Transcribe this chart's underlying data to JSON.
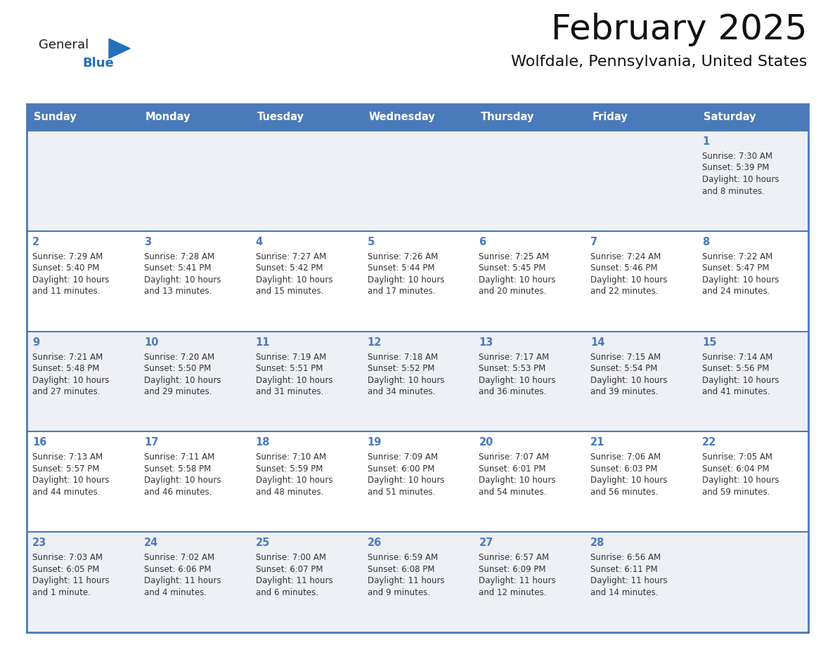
{
  "title": "February 2025",
  "subtitle": "Wolfdale, Pennsylvania, United States",
  "days_of_week": [
    "Sunday",
    "Monday",
    "Tuesday",
    "Wednesday",
    "Thursday",
    "Friday",
    "Saturday"
  ],
  "header_bg": "#4a7aba",
  "header_text": "#FFFFFF",
  "cell_bg_odd": "#eef0f5",
  "cell_bg_even": "#FFFFFF",
  "border_color": "#4a7aba",
  "title_color": "#111111",
  "subtitle_color": "#111111",
  "day_number_color": "#4a7aba",
  "cell_text_color": "#333333",
  "logo_general_color": "#1a1a1a",
  "logo_blue_color": "#2272bb",
  "weeks": [
    [
      {
        "day": null,
        "sunrise": null,
        "sunset": null,
        "daylight": null
      },
      {
        "day": null,
        "sunrise": null,
        "sunset": null,
        "daylight": null
      },
      {
        "day": null,
        "sunrise": null,
        "sunset": null,
        "daylight": null
      },
      {
        "day": null,
        "sunrise": null,
        "sunset": null,
        "daylight": null
      },
      {
        "day": null,
        "sunrise": null,
        "sunset": null,
        "daylight": null
      },
      {
        "day": null,
        "sunrise": null,
        "sunset": null,
        "daylight": null
      },
      {
        "day": 1,
        "sunrise": "7:30 AM",
        "sunset": "5:39 PM",
        "daylight": "10 hours\nand 8 minutes."
      }
    ],
    [
      {
        "day": 2,
        "sunrise": "7:29 AM",
        "sunset": "5:40 PM",
        "daylight": "10 hours\nand 11 minutes."
      },
      {
        "day": 3,
        "sunrise": "7:28 AM",
        "sunset": "5:41 PM",
        "daylight": "10 hours\nand 13 minutes."
      },
      {
        "day": 4,
        "sunrise": "7:27 AM",
        "sunset": "5:42 PM",
        "daylight": "10 hours\nand 15 minutes."
      },
      {
        "day": 5,
        "sunrise": "7:26 AM",
        "sunset": "5:44 PM",
        "daylight": "10 hours\nand 17 minutes."
      },
      {
        "day": 6,
        "sunrise": "7:25 AM",
        "sunset": "5:45 PM",
        "daylight": "10 hours\nand 20 minutes."
      },
      {
        "day": 7,
        "sunrise": "7:24 AM",
        "sunset": "5:46 PM",
        "daylight": "10 hours\nand 22 minutes."
      },
      {
        "day": 8,
        "sunrise": "7:22 AM",
        "sunset": "5:47 PM",
        "daylight": "10 hours\nand 24 minutes."
      }
    ],
    [
      {
        "day": 9,
        "sunrise": "7:21 AM",
        "sunset": "5:48 PM",
        "daylight": "10 hours\nand 27 minutes."
      },
      {
        "day": 10,
        "sunrise": "7:20 AM",
        "sunset": "5:50 PM",
        "daylight": "10 hours\nand 29 minutes."
      },
      {
        "day": 11,
        "sunrise": "7:19 AM",
        "sunset": "5:51 PM",
        "daylight": "10 hours\nand 31 minutes."
      },
      {
        "day": 12,
        "sunrise": "7:18 AM",
        "sunset": "5:52 PM",
        "daylight": "10 hours\nand 34 minutes."
      },
      {
        "day": 13,
        "sunrise": "7:17 AM",
        "sunset": "5:53 PM",
        "daylight": "10 hours\nand 36 minutes."
      },
      {
        "day": 14,
        "sunrise": "7:15 AM",
        "sunset": "5:54 PM",
        "daylight": "10 hours\nand 39 minutes."
      },
      {
        "day": 15,
        "sunrise": "7:14 AM",
        "sunset": "5:56 PM",
        "daylight": "10 hours\nand 41 minutes."
      }
    ],
    [
      {
        "day": 16,
        "sunrise": "7:13 AM",
        "sunset": "5:57 PM",
        "daylight": "10 hours\nand 44 minutes."
      },
      {
        "day": 17,
        "sunrise": "7:11 AM",
        "sunset": "5:58 PM",
        "daylight": "10 hours\nand 46 minutes."
      },
      {
        "day": 18,
        "sunrise": "7:10 AM",
        "sunset": "5:59 PM",
        "daylight": "10 hours\nand 48 minutes."
      },
      {
        "day": 19,
        "sunrise": "7:09 AM",
        "sunset": "6:00 PM",
        "daylight": "10 hours\nand 51 minutes."
      },
      {
        "day": 20,
        "sunrise": "7:07 AM",
        "sunset": "6:01 PM",
        "daylight": "10 hours\nand 54 minutes."
      },
      {
        "day": 21,
        "sunrise": "7:06 AM",
        "sunset": "6:03 PM",
        "daylight": "10 hours\nand 56 minutes."
      },
      {
        "day": 22,
        "sunrise": "7:05 AM",
        "sunset": "6:04 PM",
        "daylight": "10 hours\nand 59 minutes."
      }
    ],
    [
      {
        "day": 23,
        "sunrise": "7:03 AM",
        "sunset": "6:05 PM",
        "daylight": "11 hours\nand 1 minute."
      },
      {
        "day": 24,
        "sunrise": "7:02 AM",
        "sunset": "6:06 PM",
        "daylight": "11 hours\nand 4 minutes."
      },
      {
        "day": 25,
        "sunrise": "7:00 AM",
        "sunset": "6:07 PM",
        "daylight": "11 hours\nand 6 minutes."
      },
      {
        "day": 26,
        "sunrise": "6:59 AM",
        "sunset": "6:08 PM",
        "daylight": "11 hours\nand 9 minutes."
      },
      {
        "day": 27,
        "sunrise": "6:57 AM",
        "sunset": "6:09 PM",
        "daylight": "11 hours\nand 12 minutes."
      },
      {
        "day": 28,
        "sunrise": "6:56 AM",
        "sunset": "6:11 PM",
        "daylight": "11 hours\nand 14 minutes."
      },
      {
        "day": null,
        "sunrise": null,
        "sunset": null,
        "daylight": null
      }
    ]
  ],
  "fig_width": 11.88,
  "fig_height": 9.18,
  "dpi": 100
}
